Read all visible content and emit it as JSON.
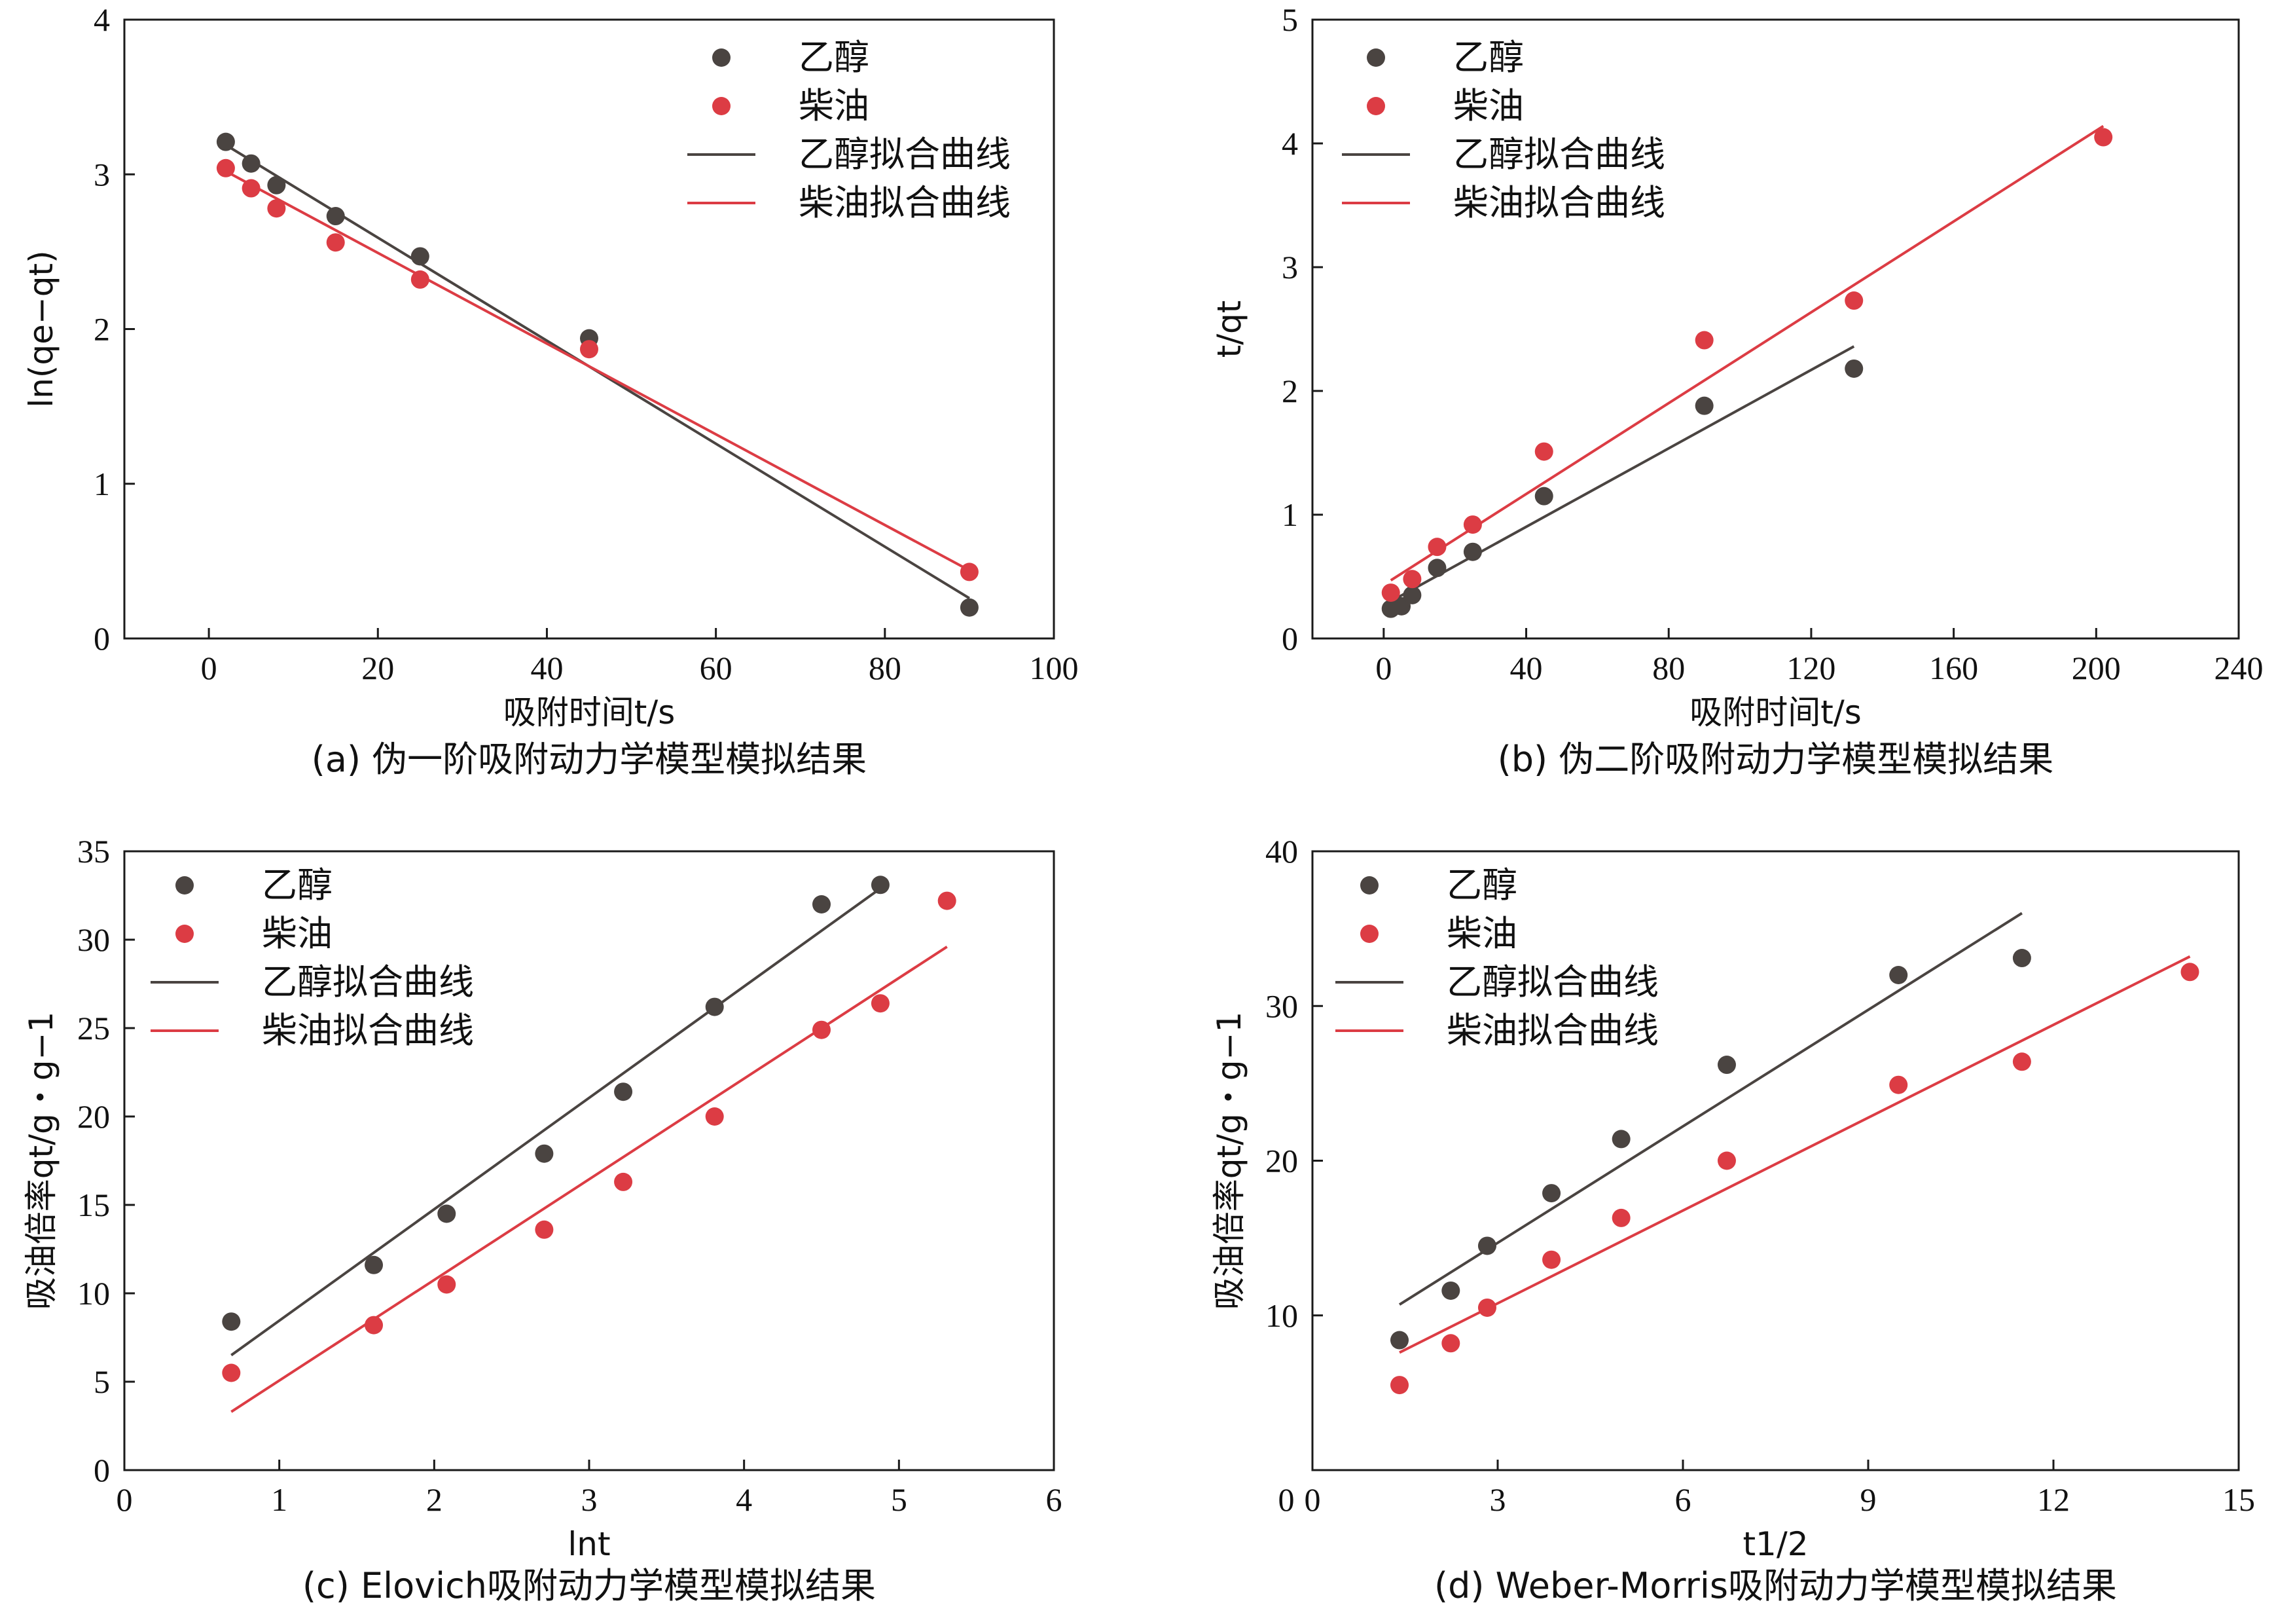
{
  "colors": {
    "ethanol": "#4a4441",
    "diesel": "#dc3c44",
    "axis": "#1a1a1a"
  },
  "chart_data": [
    {
      "id": "a",
      "type": "scatter",
      "caption": "(a) 伪一阶吸附动力学模型模拟结果",
      "xlabel": "吸附时间t/s",
      "ylabel": "ln(qe−qt)",
      "xlim": [
        -10,
        100
      ],
      "ylim": [
        0,
        4
      ],
      "xticks": [
        0,
        20,
        40,
        60,
        80,
        100
      ],
      "yticks": [
        0,
        1,
        2,
        3,
        4
      ],
      "grid": false,
      "legend_position": "top-center",
      "series": [
        {
          "name": "乙醇",
          "kind": "points",
          "color": "ethanol",
          "x": [
            2,
            5,
            8,
            15,
            25,
            45,
            90
          ],
          "y": [
            3.21,
            3.07,
            2.93,
            2.73,
            2.47,
            1.94,
            0.2
          ]
        },
        {
          "name": "柴油",
          "kind": "points",
          "color": "diesel",
          "x": [
            2,
            5,
            8,
            15,
            25,
            45,
            90
          ],
          "y": [
            3.04,
            2.91,
            2.78,
            2.56,
            2.32,
            1.87,
            0.43
          ]
        },
        {
          "name": "乙醇拟合曲线",
          "kind": "line",
          "color": "ethanol",
          "x": [
            2,
            90
          ],
          "y": [
            3.19,
            0.26
          ]
        },
        {
          "name": "柴油拟合曲线",
          "kind": "line",
          "color": "diesel",
          "x": [
            2,
            90
          ],
          "y": [
            3.02,
            0.44
          ]
        }
      ]
    },
    {
      "id": "b",
      "type": "scatter",
      "caption": "(b) 伪二阶吸附动力学模型模拟结果",
      "xlabel": "吸附时间t/s",
      "ylabel": "t/qt",
      "xlim": [
        -20,
        240
      ],
      "ylim": [
        0,
        5
      ],
      "xticks": [
        0,
        40,
        80,
        120,
        160,
        200,
        240
      ],
      "yticks": [
        0,
        1,
        2,
        3,
        4,
        5
      ],
      "grid": false,
      "legend_position": "top-left",
      "series": [
        {
          "name": "乙醇",
          "kind": "points",
          "color": "ethanol",
          "x": [
            2,
            5,
            8,
            15,
            25,
            45,
            90,
            132
          ],
          "y": [
            0.24,
            0.26,
            0.35,
            0.57,
            0.7,
            1.15,
            1.88,
            2.18
          ]
        },
        {
          "name": "柴油",
          "kind": "points",
          "color": "diesel",
          "x": [
            2,
            8,
            15,
            25,
            45,
            90,
            132,
            202
          ],
          "y": [
            0.37,
            0.48,
            0.74,
            0.92,
            1.51,
            2.41,
            2.73,
            4.05
          ]
        },
        {
          "name": "乙醇拟合曲线",
          "kind": "line",
          "color": "ethanol",
          "x": [
            2,
            132
          ],
          "y": [
            0.3,
            2.36
          ]
        },
        {
          "name": "柴油拟合曲线",
          "kind": "line",
          "color": "diesel",
          "x": [
            2,
            202
          ],
          "y": [
            0.47,
            4.14
          ]
        }
      ]
    },
    {
      "id": "c",
      "type": "scatter",
      "caption": "(c) Elovich吸附动力学模型模拟结果",
      "xlabel": "lnt",
      "ylabel": "吸油倍率qt/g・g−1",
      "xlim": [
        0,
        6
      ],
      "ylim": [
        0,
        35
      ],
      "xticks": [
        0,
        1,
        2,
        3,
        4,
        5,
        6
      ],
      "yticks": [
        0,
        5,
        10,
        15,
        20,
        25,
        30,
        35
      ],
      "grid": false,
      "legend_position": "top-left",
      "series": [
        {
          "name": "乙醇",
          "kind": "points",
          "color": "ethanol",
          "x": [
            0.69,
            1.61,
            2.08,
            2.71,
            3.22,
            3.81,
            4.5,
            4.88
          ],
          "y": [
            8.4,
            11.6,
            14.5,
            17.9,
            21.4,
            26.2,
            32.0,
            33.1
          ]
        },
        {
          "name": "柴油",
          "kind": "points",
          "color": "diesel",
          "x": [
            0.69,
            1.61,
            2.08,
            2.71,
            3.22,
            3.81,
            4.5,
            4.88,
            5.31
          ],
          "y": [
            5.5,
            8.2,
            10.5,
            13.6,
            16.3,
            20.0,
            24.9,
            26.4,
            32.2
          ]
        },
        {
          "name": "乙醇拟合曲线",
          "kind": "line",
          "color": "ethanol",
          "x": [
            0.69,
            4.88
          ],
          "y": [
            6.5,
            32.9
          ]
        },
        {
          "name": "柴油拟合曲线",
          "kind": "line",
          "color": "diesel",
          "x": [
            0.69,
            5.31
          ],
          "y": [
            3.3,
            29.6
          ]
        }
      ]
    },
    {
      "id": "d",
      "type": "scatter",
      "caption": "(d) Weber-Morris吸附动力学模型模拟结果",
      "xlabel": "t1/2",
      "ylabel": "吸油倍率qt/g・g−1",
      "xlim": [
        0,
        15
      ],
      "ylim": [
        0,
        40
      ],
      "xticks": [
        0,
        3,
        6,
        9,
        12,
        15
      ],
      "yticks": [
        10,
        20,
        30,
        40
      ],
      "show_zero_tick_label_only_on_x": true,
      "grid": false,
      "legend_position": "top-left",
      "series": [
        {
          "name": "乙醇",
          "kind": "points",
          "color": "ethanol",
          "x": [
            1.41,
            2.24,
            2.83,
            3.87,
            5.0,
            6.71,
            9.49,
            11.49
          ],
          "y": [
            8.4,
            11.6,
            14.5,
            17.9,
            21.4,
            26.2,
            32.0,
            33.1
          ]
        },
        {
          "name": "柴油",
          "kind": "points",
          "color": "diesel",
          "x": [
            1.41,
            2.24,
            2.83,
            3.87,
            5.0,
            6.71,
            9.49,
            11.49,
            14.21
          ],
          "y": [
            5.5,
            8.2,
            10.5,
            13.6,
            16.3,
            20.0,
            24.9,
            26.4,
            32.2
          ]
        },
        {
          "name": "乙醇拟合曲线",
          "kind": "line",
          "color": "ethanol",
          "x": [
            1.41,
            11.49
          ],
          "y": [
            10.7,
            36.0
          ]
        },
        {
          "name": "柴油拟合曲线",
          "kind": "line",
          "color": "diesel",
          "x": [
            1.41,
            14.21
          ],
          "y": [
            7.6,
            33.2
          ]
        }
      ]
    }
  ]
}
